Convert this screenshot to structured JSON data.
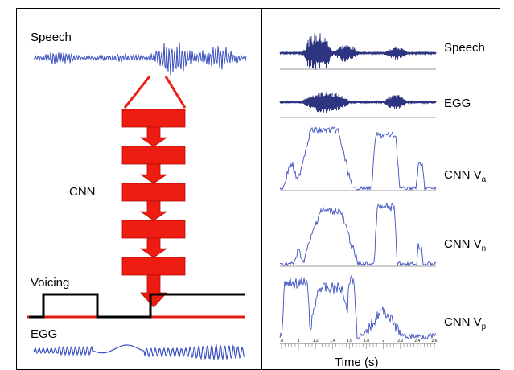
{
  "left_panel": {
    "speech_label": "Speech",
    "cnn_label": "CNN",
    "voicing_label": "Voicing",
    "egg_label": "EGG",
    "cnn_block_count": 5
  },
  "right_panel": {
    "tracks": [
      {
        "label": "Speech",
        "subscript": ""
      },
      {
        "label": "EGG",
        "subscript": ""
      },
      {
        "label": "CNN V",
        "subscript": "a"
      },
      {
        "label": "CNN V",
        "subscript": "n"
      },
      {
        "label": "CNN V",
        "subscript": "p"
      }
    ],
    "time_axis_label": "Time (s)",
    "time_ticks": [
      ".8",
      "1",
      "1.2",
      "1.4",
      "1.6",
      "1.8",
      "2",
      "2.2",
      "2.4",
      "2.6"
    ]
  },
  "colors": {
    "waveform_blue": "#3a4fc0",
    "track_navy": "#2d3580",
    "cnn_red": "#ef1c12",
    "voicing_black": "#000000",
    "voicing_baseline_red": "#e01b10",
    "border": "#000000"
  }
}
